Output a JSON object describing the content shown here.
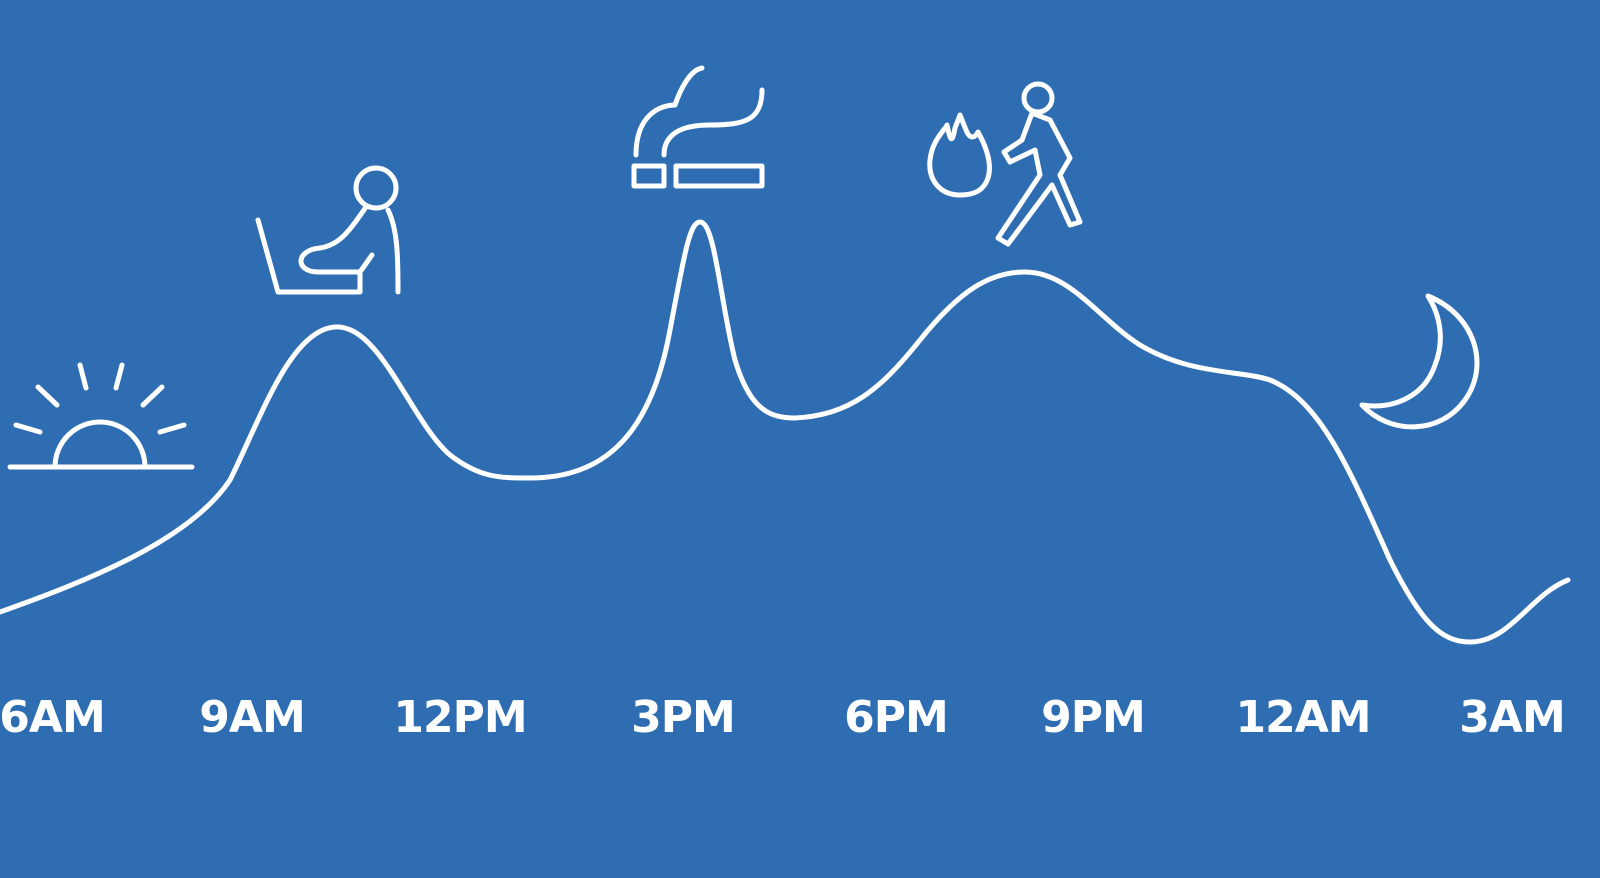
{
  "background_color": "#2f6db3",
  "line_color": "#ffffff",
  "time_labels": [
    "6AM",
    "9AM",
    "12PM",
    "3PM",
    "6PM",
    "9PM",
    "12AM",
    "3AM"
  ],
  "icons": [
    "sunrise-icon",
    "person-at-laptop-icon",
    "cigarette-smoking-icon",
    "fire-icon",
    "running-person-icon",
    "crescent-moon-icon"
  ]
}
